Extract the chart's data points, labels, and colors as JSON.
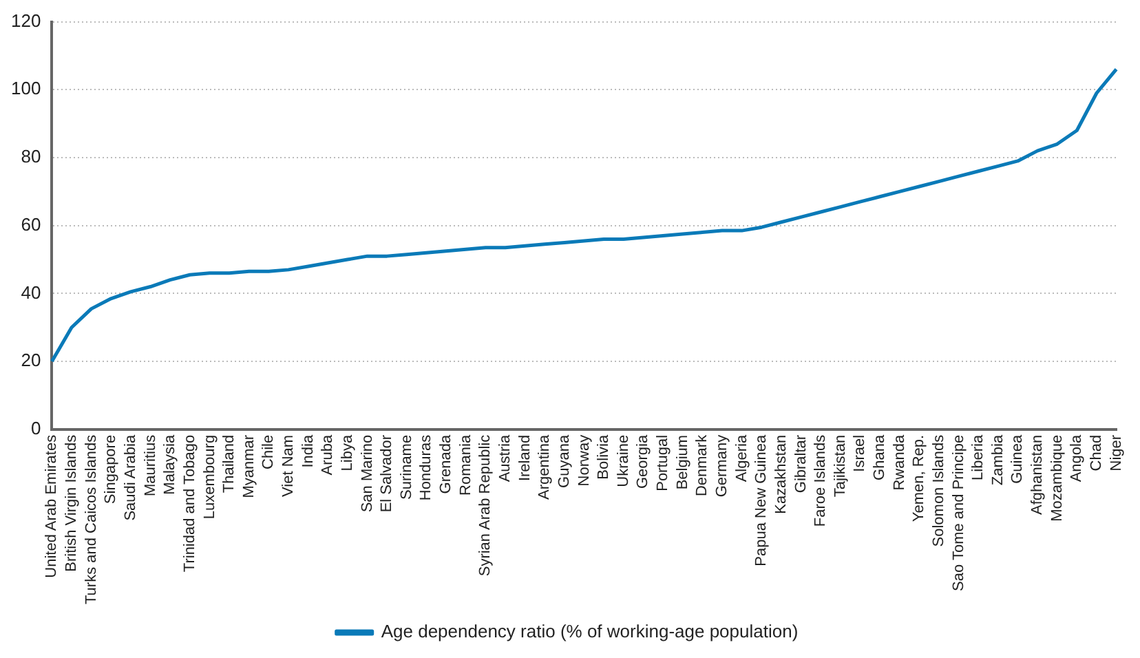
{
  "chart_data": {
    "type": "line",
    "categories": [
      "United Arab Emirates",
      "British Virgin Islands",
      "Turks and Caicos Islands",
      "Singapore",
      "Saudi Arabia",
      "Mauritius",
      "Malaysia",
      "Trinidad and Tobago",
      "Luxembourg",
      "Thailand",
      "Myanmar",
      "Chile",
      "Viet Nam",
      "India",
      "Aruba",
      "Libya",
      "San Marino",
      "El Salvador",
      "Suriname",
      "Honduras",
      "Grenada",
      "Romania",
      "Syrian Arab Republic",
      "Austria",
      "Ireland",
      "Argentina",
      "Guyana",
      "Norway",
      "Bolivia",
      "Ukraine",
      "Georgia",
      "Portugal",
      "Belgium",
      "Denmark",
      "Germany",
      "Algeria",
      "Papua New Guinea",
      "Kazakhstan",
      "Gibraltar",
      "Faroe Islands",
      "Tajikistan",
      "Israel",
      "Ghana",
      "Rwanda",
      "Yemen, Rep.",
      "Solomon Islands",
      "Sao Tome and Principe",
      "Liberia",
      "Zambia",
      "Guinea",
      "Afghanistan",
      "Mozambique",
      "Angola",
      "Chad",
      "Niger"
    ],
    "series": [
      {
        "name": "Age dependency ratio (% of working-age population)",
        "color": "#0a7ab8",
        "values": [
          20,
          30,
          35.5,
          38.5,
          40.5,
          42,
          44,
          45.5,
          46,
          46,
          46.5,
          46.5,
          47,
          48,
          49,
          50,
          51,
          51,
          51.5,
          52,
          52.5,
          53,
          53.5,
          53.5,
          54,
          54.5,
          55,
          55.5,
          56,
          56,
          56.5,
          57,
          57.5,
          58,
          58.5,
          58.5,
          59.5,
          61,
          62.5,
          64,
          65.5,
          67,
          68.5,
          70,
          71.5,
          73,
          74.5,
          76,
          77.5,
          79,
          82,
          84,
          88,
          99,
          106
        ]
      }
    ],
    "ylim": [
      0,
      120
    ],
    "yticks": [
      0,
      20,
      40,
      60,
      80,
      100,
      120
    ],
    "grid": "y",
    "legend": "bottom",
    "marker": "none",
    "line_style": "solid"
  }
}
